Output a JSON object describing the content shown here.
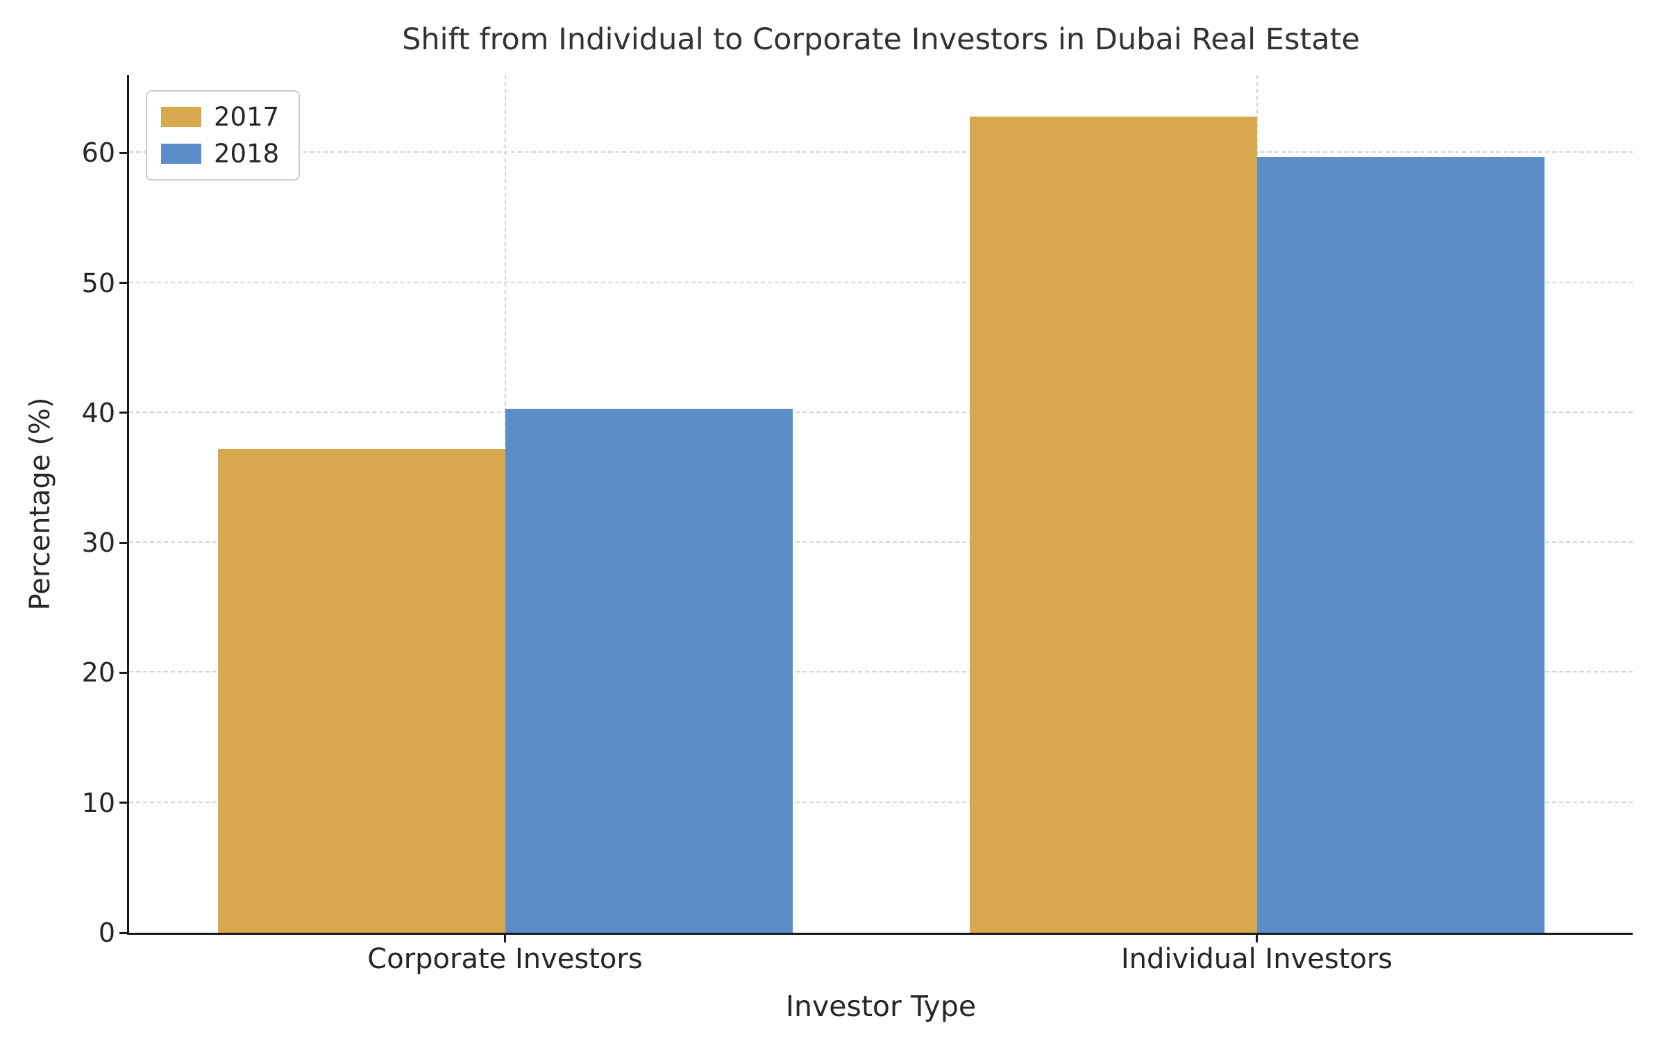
{
  "chart_data": {
    "type": "bar",
    "title": "Shift from Individual to Corporate Investors in Dubai Real Estate",
    "xlabel": "Investor Type",
    "ylabel": "Percentage (%)",
    "categories": [
      "Corporate Investors",
      "Individual Investors"
    ],
    "series": [
      {
        "name": "2017",
        "color": "#d8a84e",
        "values": [
          37.2,
          62.8
        ]
      },
      {
        "name": "2018",
        "color": "#5b8dc9",
        "values": [
          40.3,
          59.7
        ]
      }
    ],
    "ylim": [
      0,
      66
    ],
    "yticks": [
      0,
      10,
      20,
      30,
      40,
      50,
      60
    ],
    "grid": true,
    "legend_position": "upper left"
  }
}
